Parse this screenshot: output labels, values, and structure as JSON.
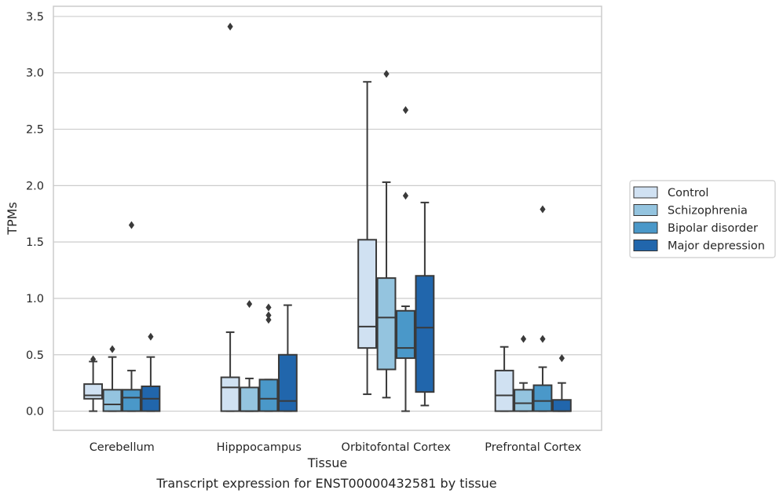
{
  "caption": "Transcript expression for ENST00000432581 by tissue",
  "chart_data": {
    "type": "boxplot",
    "xlabel": "Tissue",
    "ylabel": "TPMs",
    "ylim": [
      -0.17,
      3.59
    ],
    "yticks": [
      "0.0",
      "0.5",
      "1.0",
      "1.5",
      "2.0",
      "2.5",
      "3.0",
      "3.5"
    ],
    "ytick_values": [
      0.0,
      0.5,
      1.0,
      1.5,
      2.0,
      2.5,
      3.0,
      3.5
    ],
    "grid": "horizontal",
    "legend_position": "right",
    "categories": [
      "Cerebellum",
      "Hipppocampus",
      "Orbitofontal Cortex",
      "Prefrontal Cortex"
    ],
    "series": [
      {
        "name": "Control",
        "color": "#d0e1f2",
        "boxes": [
          {
            "whisker_low": 0.0,
            "q1": 0.11,
            "median": 0.14,
            "q3": 0.24,
            "whisker_high": 0.44,
            "outliers": [
              0.46
            ]
          },
          {
            "whisker_low": 0.0,
            "q1": 0.0,
            "median": 0.21,
            "q3": 0.3,
            "whisker_high": 0.7,
            "outliers": [
              3.41
            ]
          },
          {
            "whisker_low": 0.15,
            "q1": 0.56,
            "median": 0.75,
            "q3": 1.52,
            "whisker_high": 2.92,
            "outliers": []
          },
          {
            "whisker_low": 0.0,
            "q1": 0.0,
            "median": 0.14,
            "q3": 0.36,
            "whisker_high": 0.57,
            "outliers": []
          }
        ]
      },
      {
        "name": "Schizophrenia",
        "color": "#94c4df",
        "boxes": [
          {
            "whisker_low": 0.0,
            "q1": 0.0,
            "median": 0.06,
            "q3": 0.19,
            "whisker_high": 0.48,
            "outliers": [
              0.55
            ]
          },
          {
            "whisker_low": 0.0,
            "q1": 0.0,
            "median": 0.0,
            "q3": 0.21,
            "whisker_high": 0.29,
            "outliers": [
              0.95
            ]
          },
          {
            "whisker_low": 0.12,
            "q1": 0.37,
            "median": 0.83,
            "q3": 1.18,
            "whisker_high": 2.03,
            "outliers": [
              2.99
            ]
          },
          {
            "whisker_low": 0.0,
            "q1": 0.0,
            "median": 0.07,
            "q3": 0.19,
            "whisker_high": 0.25,
            "outliers": [
              0.64
            ]
          }
        ]
      },
      {
        "name": "Bipolar disorder",
        "color": "#4a98c9",
        "boxes": [
          {
            "whisker_low": 0.0,
            "q1": 0.0,
            "median": 0.12,
            "q3": 0.19,
            "whisker_high": 0.36,
            "outliers": [
              1.65
            ]
          },
          {
            "whisker_low": 0.0,
            "q1": 0.0,
            "median": 0.11,
            "q3": 0.28,
            "whisker_high": 0.28,
            "outliers": [
              0.92,
              0.85,
              0.81
            ]
          },
          {
            "whisker_low": 0.0,
            "q1": 0.47,
            "median": 0.56,
            "q3": 0.89,
            "whisker_high": 0.93,
            "outliers": [
              1.91,
              2.67
            ]
          },
          {
            "whisker_low": 0.0,
            "q1": 0.0,
            "median": 0.09,
            "q3": 0.23,
            "whisker_high": 0.39,
            "outliers": [
              0.64,
              1.79
            ]
          }
        ]
      },
      {
        "name": "Major depression",
        "color": "#2166ac",
        "boxes": [
          {
            "whisker_low": 0.0,
            "q1": 0.0,
            "median": 0.11,
            "q3": 0.22,
            "whisker_high": 0.48,
            "outliers": [
              0.66
            ]
          },
          {
            "whisker_low": 0.0,
            "q1": 0.0,
            "median": 0.09,
            "q3": 0.5,
            "whisker_high": 0.94,
            "outliers": []
          },
          {
            "whisker_low": 0.05,
            "q1": 0.17,
            "median": 0.74,
            "q3": 1.2,
            "whisker_high": 1.85,
            "outliers": []
          },
          {
            "whisker_low": 0.0,
            "q1": 0.0,
            "median": 0.0,
            "q3": 0.1,
            "whisker_high": 0.25,
            "outliers": [
              0.47
            ]
          }
        ]
      }
    ]
  }
}
